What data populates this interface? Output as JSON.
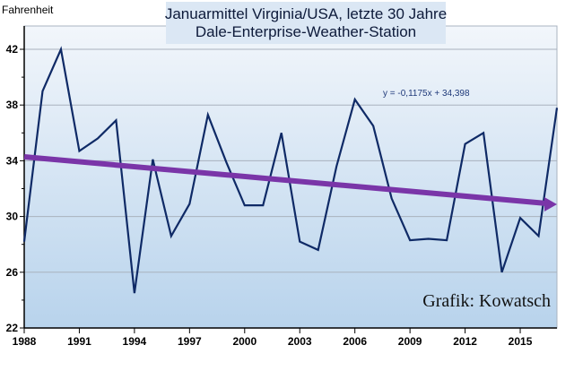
{
  "chart_data": {
    "type": "line",
    "title": "Januarmittel Virginia/USA, letzte 30 Jahre",
    "subtitle": "Dale-Enterprise-Weather-Station",
    "ylabel": "Fahrenheit",
    "xlabel": "",
    "ylim": [
      22,
      42
    ],
    "yticks": [
      22,
      26,
      30,
      34,
      38,
      42
    ],
    "xlim": [
      1988,
      2017
    ],
    "xticks": [
      1988,
      1991,
      1994,
      1997,
      2000,
      2003,
      2006,
      2009,
      2012,
      2015
    ],
    "grid": true,
    "x": [
      1988,
      1989,
      1990,
      1991,
      1992,
      1993,
      1994,
      1995,
      1996,
      1997,
      1998,
      1999,
      2000,
      2001,
      2002,
      2003,
      2004,
      2005,
      2006,
      2007,
      2008,
      2009,
      2010,
      2011,
      2012,
      2013,
      2014,
      2015,
      2016,
      2017
    ],
    "series": [
      {
        "values": [
          28.2,
          39.0,
          42.0,
          34.7,
          35.6,
          36.9,
          24.5,
          34.1,
          28.6,
          30.9,
          37.3,
          33.9,
          30.8,
          30.8,
          36.0,
          28.2,
          27.6,
          33.6,
          38.4,
          36.5,
          31.3,
          28.3,
          28.4,
          28.3,
          35.2,
          36.0,
          26.0,
          29.9,
          28.6,
          37.8
        ],
        "color": "#0f2a66"
      }
    ],
    "trendline": {
      "slope": -0.1175,
      "intercept": 34.398,
      "label": "y = -0,1175x + 34,398",
      "color": "#7a35a8"
    },
    "credit": "Grafik: Kowatsch"
  }
}
